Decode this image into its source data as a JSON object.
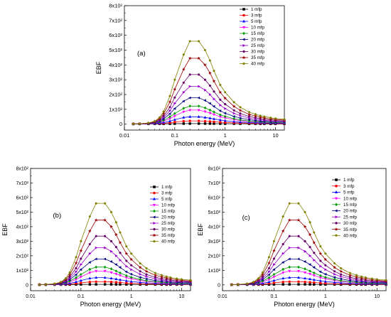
{
  "chart_data": [
    {
      "type": "line",
      "panel_label": "(a)",
      "xscale": "log",
      "xlim": [
        0.01,
        15
      ],
      "ylim": [
        -40,
        800
      ],
      "xlabel": "Photon energy (MeV)",
      "ylabel": "EBF",
      "xticks": [
        "0.01",
        "0.1",
        "1",
        "10"
      ],
      "yticks": [
        "0",
        "1x10²",
        "2x10²",
        "3x10²",
        "4x10²",
        "5x10²",
        "6x10²",
        "7x10²",
        "8x10²"
      ],
      "legend_position": "top-right",
      "x": [
        0.015,
        0.02,
        0.03,
        0.04,
        0.05,
        0.06,
        0.08,
        0.1,
        0.15,
        0.2,
        0.3,
        0.4,
        0.5,
        0.6,
        0.8,
        1,
        1.5,
        2,
        3,
        4,
        5,
        6,
        8,
        10,
        15
      ],
      "series": [
        {
          "name": "1 mfp",
          "color": "#000000",
          "marker": "square",
          "values": [
            1.1,
            1.2,
            1.4,
            1.6,
            1.9,
            2.2,
            2.7,
            3.2,
            3.5,
            3.6,
            3.6,
            3.5,
            3.4,
            3.3,
            3.1,
            3.0,
            2.8,
            2.6,
            2.4,
            2.3,
            2.2,
            2.1,
            2.0,
            1.9,
            1.8
          ]
        },
        {
          "name": "3 mfp",
          "color": "#ff0000",
          "marker": "circle",
          "values": [
            1.2,
            1.5,
            2,
            3,
            4.5,
            6,
            10,
            14,
            20,
            22,
            22,
            20,
            18,
            16,
            13,
            11,
            9,
            8,
            6.5,
            5.8,
            5.3,
            5,
            4.5,
            4.2,
            3.8
          ]
        },
        {
          "name": "5 mfp",
          "color": "#0000ff",
          "marker": "triangle",
          "values": [
            1.3,
            1.7,
            2.5,
            4,
            7,
            11,
            20,
            30,
            45,
            50,
            50,
            45,
            40,
            35,
            28,
            23,
            17,
            14,
            11,
            9.5,
            8.5,
            7.8,
            7,
            6.5,
            6
          ]
        },
        {
          "name": "10 mfp",
          "color": "#ff00ff",
          "marker": "triangle-down",
          "values": [
            1.5,
            2,
            3,
            6,
            12,
            20,
            37,
            55,
            84,
            95,
            95,
            85,
            75,
            65,
            50,
            42,
            30,
            24,
            18,
            15,
            13,
            12,
            10.5,
            9.5,
            8.5
          ]
        },
        {
          "name": "15 mfp",
          "color": "#009900",
          "marker": "diamond",
          "values": [
            1.5,
            2,
            3.5,
            8,
            15,
            26,
            50,
            72,
            107,
            122,
            122,
            110,
            95,
            82,
            63,
            52,
            37,
            29,
            21,
            18,
            16,
            14,
            12,
            11,
            10
          ]
        },
        {
          "name": "20 mfp",
          "color": "#000080",
          "marker": "triangle-left",
          "values": [
            1.5,
            2.2,
            4,
            10,
            20,
            35,
            70,
            105,
            155,
            178,
            178,
            160,
            140,
            120,
            90,
            74,
            52,
            41,
            30,
            25,
            22,
            19,
            17,
            15,
            13.5
          ]
        },
        {
          "name": "25 mfp",
          "color": "#9900cc",
          "marker": "triangle-right",
          "values": [
            1.6,
            2.4,
            5,
            12,
            25,
            45,
            90,
            140,
            215,
            255,
            255,
            230,
            200,
            170,
            128,
            105,
            73,
            57,
            41,
            34,
            29,
            26,
            22,
            20,
            18
          ]
        },
        {
          "name": "30 mfp",
          "color": "#660066",
          "marker": "hexagon",
          "values": [
            1.7,
            2.6,
            6,
            14,
            30,
            55,
            115,
            180,
            280,
            335,
            335,
            300,
            260,
            220,
            165,
            135,
            93,
            72,
            52,
            43,
            37,
            33,
            28,
            25,
            22
          ]
        },
        {
          "name": "35 mfp",
          "color": "#990000",
          "marker": "star",
          "values": [
            1.8,
            2.8,
            7,
            17,
            38,
            70,
            150,
            235,
            370,
            445,
            445,
            400,
            345,
            290,
            215,
            175,
            120,
            93,
            66,
            55,
            47,
            42,
            35,
            31,
            27
          ]
        },
        {
          "name": "40 mfp",
          "color": "#808000",
          "marker": "pentagon",
          "values": [
            2,
            3,
            8,
            20,
            45,
            85,
            190,
            300,
            470,
            560,
            560,
            500,
            430,
            360,
            265,
            215,
            148,
            114,
            81,
            67,
            57,
            51,
            43,
            38,
            33
          ]
        }
      ]
    },
    {
      "type": "line",
      "panel_label": "(b)",
      "xscale": "log",
      "xlim": [
        0.01,
        15
      ],
      "ylim": [
        -40,
        800
      ],
      "xlabel": "Photon energy (MeV)",
      "ylabel": "EBF",
      "xticks": [
        "0.01",
        "0.1",
        "1",
        "10"
      ],
      "yticks": [
        "0",
        "1x10²",
        "2x10²",
        "3x10²",
        "4x10²",
        "5x10²",
        "6x10²",
        "7x10²",
        "8x10²"
      ],
      "legend_position": "top-right",
      "x": [
        0.015,
        0.02,
        0.03,
        0.04,
        0.05,
        0.06,
        0.08,
        0.1,
        0.15,
        0.2,
        0.3,
        0.4,
        0.5,
        0.6,
        0.8,
        1,
        1.5,
        2,
        3,
        4,
        5,
        6,
        8,
        10,
        15
      ],
      "series": [
        {
          "name": "1 mfp",
          "color": "#000000",
          "marker": "square",
          "values": [
            1.1,
            1.2,
            1.4,
            1.6,
            1.9,
            2.2,
            2.7,
            3.2,
            3.5,
            3.6,
            3.6,
            3.5,
            3.4,
            3.3,
            3.1,
            3.0,
            2.8,
            2.6,
            2.4,
            2.3,
            2.2,
            2.1,
            2.0,
            1.9,
            1.8
          ]
        },
        {
          "name": "3 mfp",
          "color": "#ff0000",
          "marker": "circle",
          "values": [
            1.2,
            1.5,
            2,
            3,
            4.5,
            6,
            10,
            14,
            20,
            22,
            22,
            20,
            18,
            16,
            13,
            11,
            9,
            8,
            6.5,
            5.8,
            5.3,
            5,
            4.5,
            4.2,
            3.8
          ]
        },
        {
          "name": "5 mfp",
          "color": "#0000ff",
          "marker": "triangle",
          "values": [
            1.3,
            1.7,
            2.5,
            4,
            7,
            11,
            20,
            30,
            45,
            50,
            50,
            45,
            40,
            35,
            28,
            23,
            17,
            14,
            11,
            9.5,
            8.5,
            7.8,
            7,
            6.5,
            6
          ]
        },
        {
          "name": "10 mfp",
          "color": "#ff00ff",
          "marker": "triangle-down",
          "values": [
            1.5,
            2,
            3,
            6,
            12,
            20,
            37,
            55,
            84,
            95,
            95,
            85,
            75,
            65,
            50,
            42,
            30,
            24,
            18,
            15,
            13,
            12,
            10.5,
            9.5,
            8.5
          ]
        },
        {
          "name": "15 mfp",
          "color": "#009900",
          "marker": "diamond",
          "values": [
            1.5,
            2,
            3.5,
            8,
            15,
            26,
            50,
            72,
            107,
            122,
            122,
            110,
            95,
            82,
            63,
            52,
            37,
            29,
            21,
            18,
            16,
            14,
            12,
            11,
            10
          ]
        },
        {
          "name": "20 mfp",
          "color": "#000080",
          "marker": "triangle-left",
          "values": [
            1.5,
            2.2,
            4,
            10,
            20,
            35,
            70,
            105,
            155,
            178,
            178,
            160,
            140,
            120,
            90,
            74,
            52,
            41,
            30,
            25,
            22,
            19,
            17,
            15,
            13.5
          ]
        },
        {
          "name": "25 mfp",
          "color": "#9900cc",
          "marker": "triangle-right",
          "values": [
            1.6,
            2.4,
            5,
            12,
            25,
            45,
            90,
            140,
            215,
            255,
            255,
            230,
            200,
            170,
            128,
            105,
            73,
            57,
            41,
            34,
            29,
            26,
            22,
            20,
            18
          ]
        },
        {
          "name": "30 mfp",
          "color": "#660066",
          "marker": "hexagon",
          "values": [
            1.7,
            2.6,
            6,
            14,
            30,
            55,
            115,
            180,
            280,
            335,
            335,
            300,
            260,
            220,
            165,
            135,
            93,
            72,
            52,
            43,
            37,
            33,
            28,
            25,
            22
          ]
        },
        {
          "name": "35 mfp",
          "color": "#990000",
          "marker": "star",
          "values": [
            1.8,
            2.8,
            7,
            17,
            38,
            70,
            150,
            235,
            370,
            445,
            445,
            400,
            345,
            290,
            215,
            175,
            120,
            93,
            66,
            55,
            47,
            42,
            35,
            31,
            27
          ]
        },
        {
          "name": "40 mfp",
          "color": "#808000",
          "marker": "pentagon",
          "values": [
            2,
            3,
            8,
            20,
            45,
            85,
            190,
            300,
            470,
            560,
            560,
            500,
            430,
            360,
            265,
            215,
            148,
            114,
            81,
            67,
            57,
            51,
            43,
            38,
            33
          ]
        }
      ]
    },
    {
      "type": "line",
      "panel_label": "(c)",
      "xscale": "log",
      "xlim": [
        0.01,
        15
      ],
      "ylim": [
        -40,
        800
      ],
      "xlabel": "Photon energy (MeV)",
      "ylabel": "EBF",
      "xticks": [
        "0.01",
        "0.1",
        "1",
        "10"
      ],
      "yticks": [
        "0",
        "1x10²",
        "2x10²",
        "3x10²",
        "4x10²",
        "5x10²",
        "6x10²",
        "7x10²",
        "8x10²"
      ],
      "legend_position": "top-right",
      "x": [
        0.015,
        0.02,
        0.03,
        0.04,
        0.05,
        0.06,
        0.08,
        0.1,
        0.15,
        0.2,
        0.3,
        0.4,
        0.5,
        0.6,
        0.8,
        1,
        1.5,
        2,
        3,
        4,
        5,
        6,
        8,
        10,
        15
      ],
      "series": [
        {
          "name": "1 mfp",
          "color": "#000000",
          "marker": "square",
          "values": [
            1.1,
            1.2,
            1.4,
            1.6,
            1.9,
            2.2,
            2.7,
            3.2,
            3.5,
            3.6,
            3.6,
            3.5,
            3.4,
            3.3,
            3.1,
            3.0,
            2.8,
            2.6,
            2.4,
            2.3,
            2.2,
            2.1,
            2.0,
            1.9,
            1.8
          ]
        },
        {
          "name": "3 mfp",
          "color": "#ff0000",
          "marker": "circle",
          "values": [
            1.2,
            1.5,
            2,
            3,
            4.5,
            6,
            10,
            14,
            20,
            22,
            22,
            20,
            18,
            16,
            13,
            11,
            9,
            8,
            6.5,
            5.8,
            5.3,
            5,
            4.5,
            4.2,
            3.8
          ]
        },
        {
          "name": "5 mfp",
          "color": "#0000ff",
          "marker": "triangle",
          "values": [
            1.3,
            1.7,
            2.5,
            4,
            7,
            11,
            20,
            30,
            45,
            50,
            50,
            45,
            40,
            35,
            28,
            23,
            17,
            14,
            11,
            9.5,
            8.5,
            7.8,
            7,
            6.5,
            6
          ]
        },
        {
          "name": "10 mfp",
          "color": "#ff00ff",
          "marker": "triangle-down",
          "values": [
            1.5,
            2,
            3,
            6,
            12,
            20,
            37,
            55,
            84,
            95,
            95,
            85,
            75,
            65,
            50,
            42,
            30,
            24,
            18,
            15,
            13,
            12,
            10.5,
            9.5,
            8.5
          ]
        },
        {
          "name": "15 mfp",
          "color": "#009900",
          "marker": "diamond",
          "values": [
            1.5,
            2,
            3.5,
            8,
            15,
            26,
            50,
            72,
            107,
            122,
            122,
            110,
            95,
            82,
            63,
            52,
            37,
            29,
            21,
            18,
            16,
            14,
            12,
            11,
            10
          ]
        },
        {
          "name": "20 mfp",
          "color": "#000080",
          "marker": "triangle-left",
          "values": [
            1.5,
            2.2,
            4,
            10,
            20,
            35,
            70,
            105,
            155,
            178,
            178,
            160,
            140,
            120,
            90,
            74,
            52,
            41,
            30,
            25,
            22,
            19,
            17,
            15,
            13.5
          ]
        },
        {
          "name": "25 mfp",
          "color": "#9900cc",
          "marker": "triangle-right",
          "values": [
            1.6,
            2.4,
            5,
            12,
            25,
            45,
            90,
            140,
            215,
            255,
            255,
            230,
            200,
            170,
            128,
            105,
            73,
            57,
            41,
            34,
            29,
            26,
            22,
            20,
            18
          ]
        },
        {
          "name": "30 mfp",
          "color": "#660066",
          "marker": "hexagon",
          "values": [
            1.7,
            2.6,
            6,
            14,
            30,
            55,
            115,
            180,
            280,
            335,
            335,
            300,
            260,
            220,
            165,
            135,
            93,
            72,
            52,
            43,
            37,
            33,
            28,
            25,
            22
          ]
        },
        {
          "name": "35 mfp",
          "color": "#990000",
          "marker": "star",
          "values": [
            1.8,
            2.8,
            7,
            17,
            38,
            70,
            150,
            235,
            370,
            445,
            445,
            400,
            345,
            290,
            215,
            175,
            120,
            93,
            66,
            55,
            47,
            42,
            35,
            31,
            27
          ]
        },
        {
          "name": "40 mfp",
          "color": "#808000",
          "marker": "pentagon",
          "values": [
            2,
            3,
            8,
            20,
            45,
            85,
            190,
            300,
            470,
            560,
            560,
            500,
            430,
            360,
            265,
            215,
            148,
            114,
            81,
            67,
            57,
            51,
            43,
            38,
            33
          ]
        }
      ]
    }
  ]
}
